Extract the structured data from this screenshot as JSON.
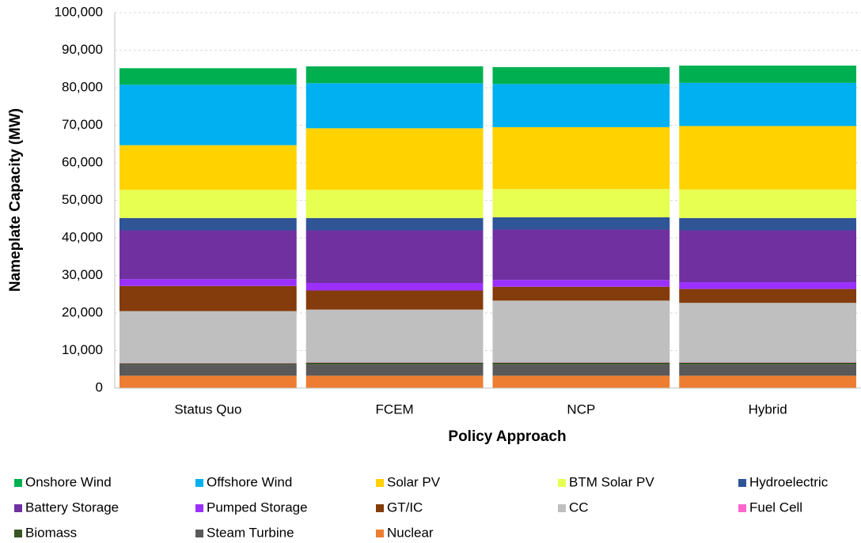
{
  "chart_data": {
    "type": "stacked_bar",
    "categories": [
      "Status Quo",
      "FCEM",
      "NCP",
      "Hybrid"
    ],
    "xlabel": "Policy Approach",
    "ylabel": "Nameplate Capacity (MW)",
    "ylim": [
      0,
      100000
    ],
    "yticks": [
      0,
      {
        "value": 10000,
        "label": "10,000"
      },
      {
        "value": 20000,
        "label": "20,000"
      },
      {
        "value": 30000,
        "label": "30,000"
      },
      {
        "value": 40000,
        "label": "40,000"
      },
      {
        "value": 50000,
        "label": "50,000"
      },
      {
        "value": 60000,
        "label": "60,000"
      },
      {
        "value": 70000,
        "label": "70,000"
      },
      {
        "value": 80000,
        "label": "80,000"
      },
      {
        "value": 90000,
        "label": "90,000"
      },
      {
        "value": 100000,
        "label": "100,000"
      }
    ],
    "grid": true,
    "series": [
      {
        "name": "Onshore Wind",
        "color": "#00b050",
        "values": [
          4400,
          4500,
          4500,
          4600
        ]
      },
      {
        "name": "Offshore Wind",
        "color": "#00b0f0",
        "values": [
          16100,
          12000,
          11500,
          11500
        ]
      },
      {
        "name": "Solar PV",
        "color": "#ffd200",
        "values": [
          11900,
          16400,
          16500,
          16900
        ]
      },
      {
        "name": "BTM Solar PV",
        "color": "#e6ff50",
        "values": [
          7500,
          7500,
          7500,
          7600
        ]
      },
      {
        "name": "Hydroelectric",
        "color": "#2f5597",
        "values": [
          3300,
          3300,
          3300,
          3300
        ]
      },
      {
        "name": "Battery Storage",
        "color": "#7030a0",
        "values": [
          13000,
          14000,
          13400,
          13800
        ]
      },
      {
        "name": "Pumped Storage",
        "color": "#9b30ff",
        "values": [
          1800,
          2000,
          1800,
          1800
        ]
      },
      {
        "name": "GT/IC",
        "color": "#843c0c",
        "values": [
          6700,
          5100,
          3700,
          3700
        ]
      },
      {
        "name": "CC",
        "color": "#bfbfbf",
        "values": [
          13800,
          14000,
          16400,
          15800
        ]
      },
      {
        "name": "Fuel Cell",
        "color": "#ff66cc",
        "values": [
          100,
          100,
          100,
          100
        ]
      },
      {
        "name": "Biomass",
        "color": "#375623",
        "values": [
          300,
          500,
          500,
          500
        ]
      },
      {
        "name": "Steam Turbine",
        "color": "#595959",
        "values": [
          3000,
          3000,
          3000,
          3000
        ]
      },
      {
        "name": "Nuclear",
        "color": "#ed7d31",
        "values": [
          3300,
          3300,
          3300,
          3300
        ]
      }
    ]
  }
}
